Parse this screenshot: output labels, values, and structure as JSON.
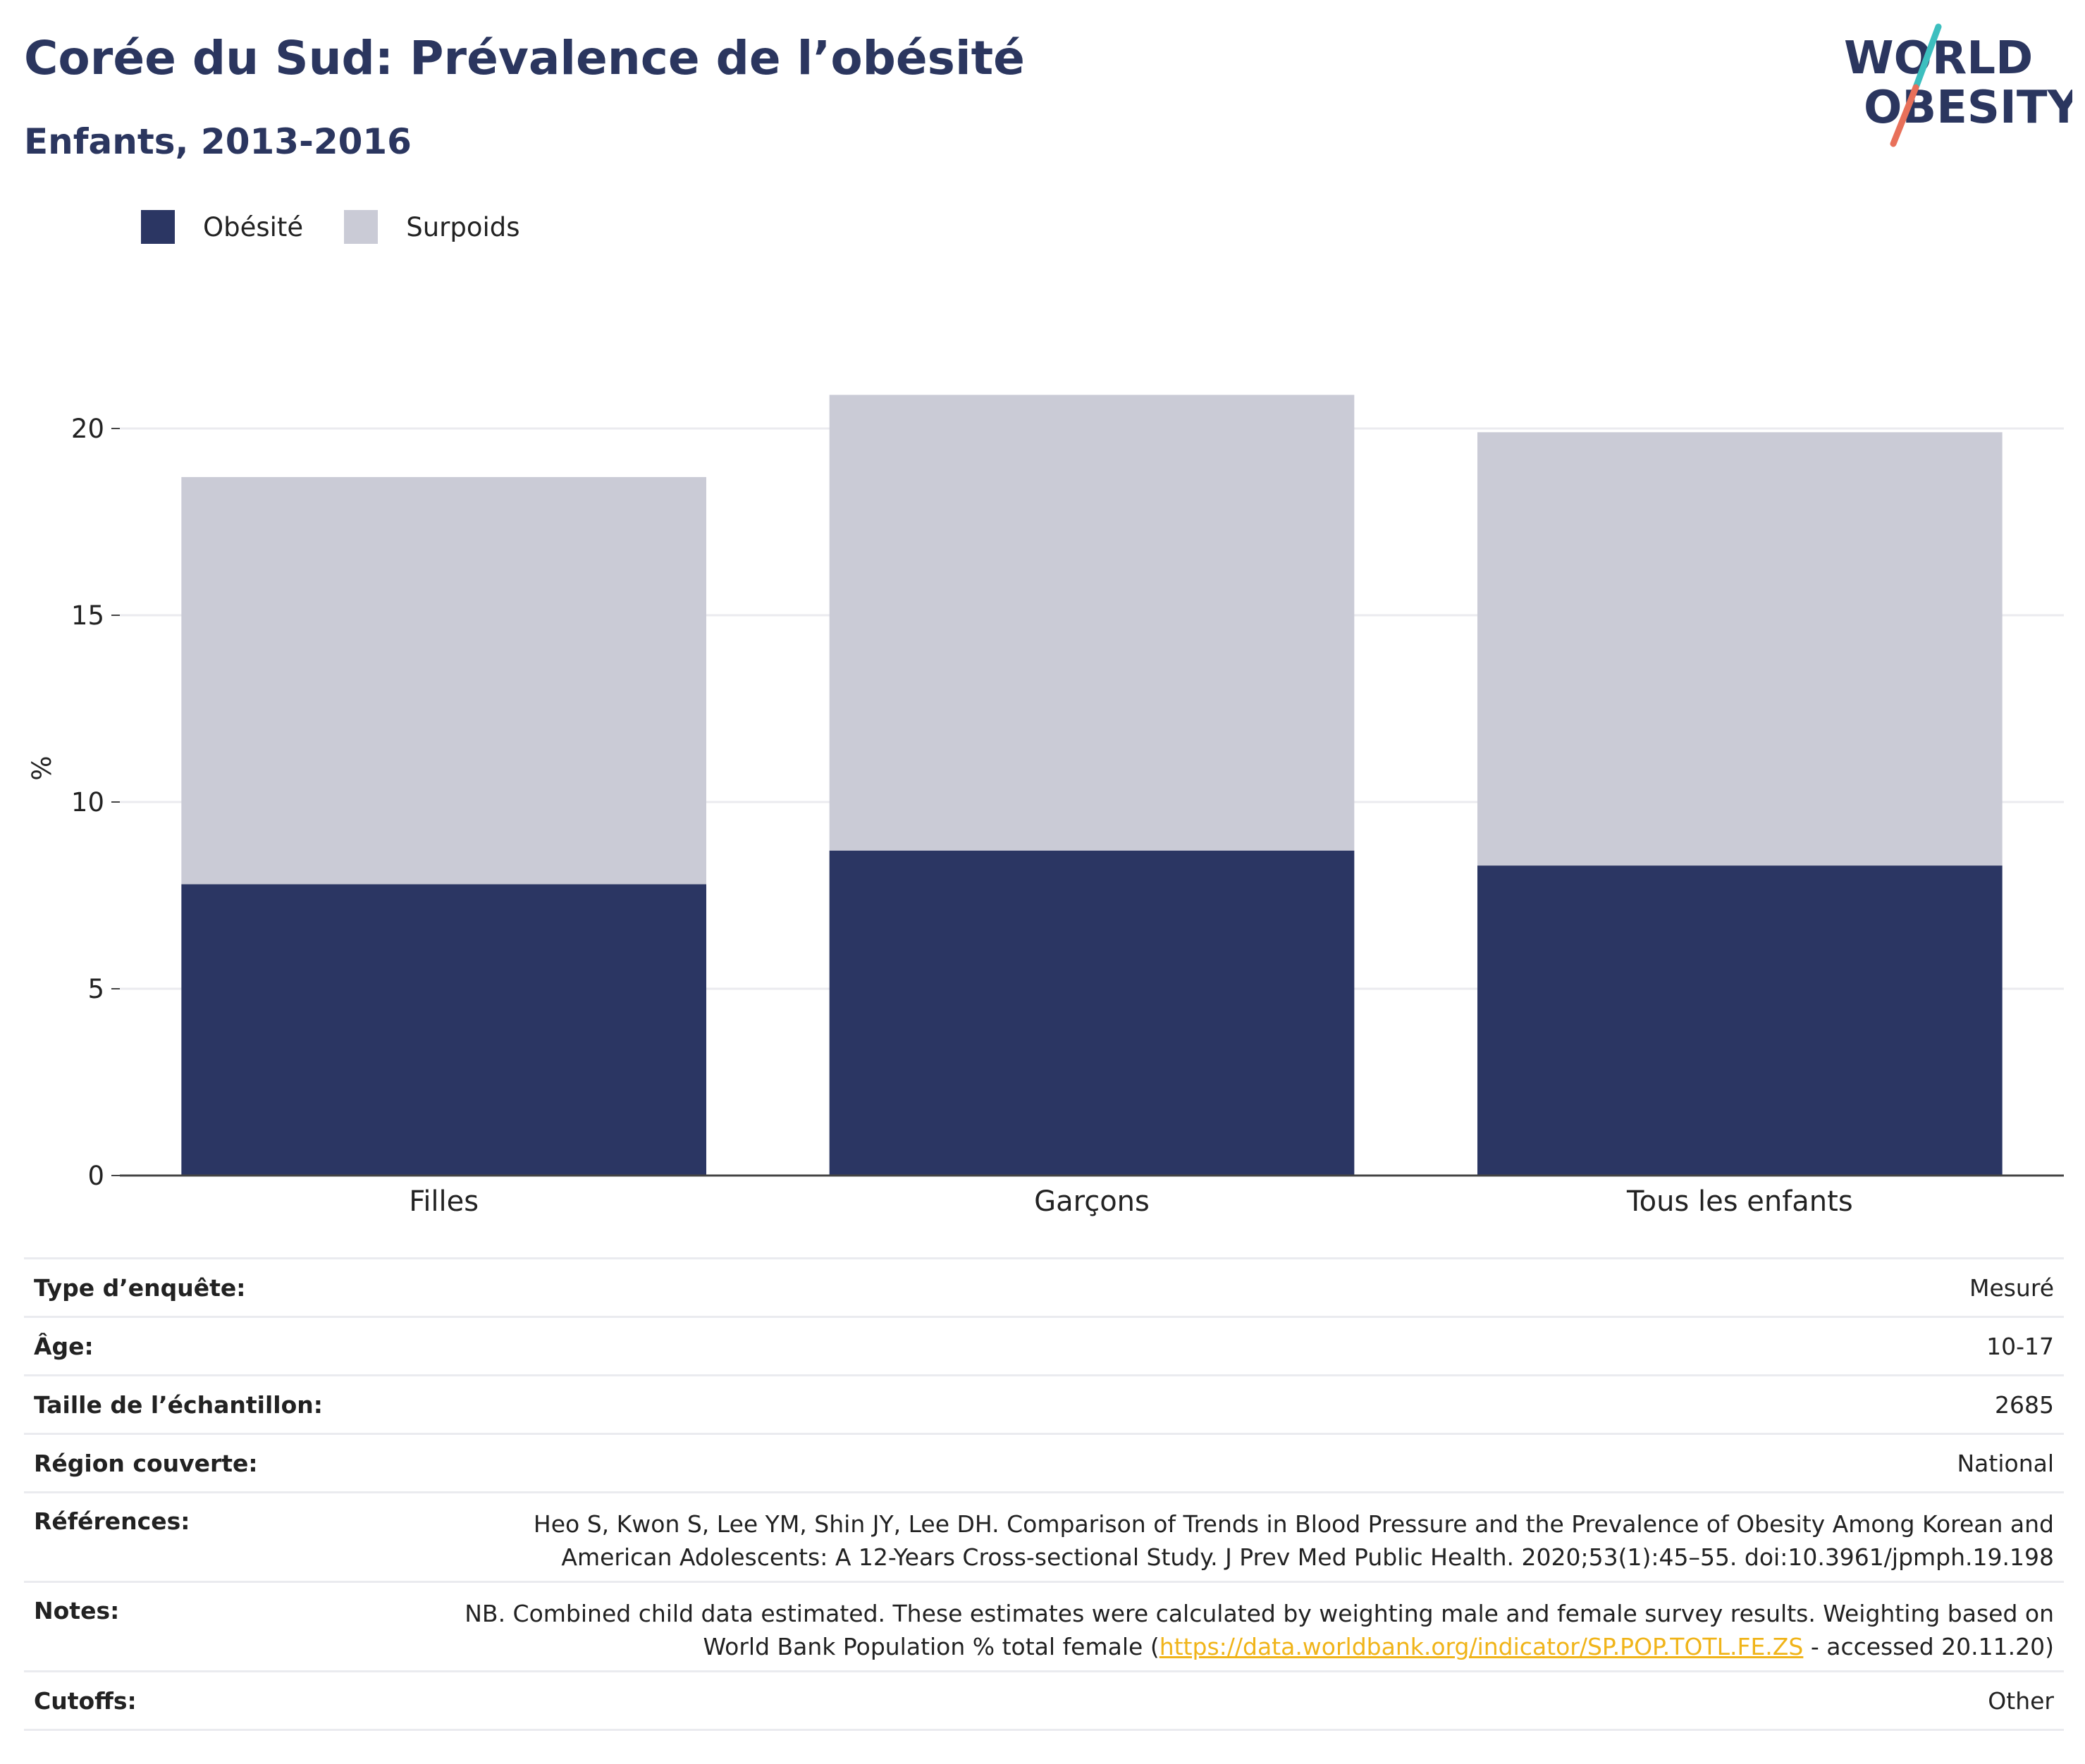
{
  "header": {
    "title": "Corée du Sud: Prévalence de l’obésité",
    "subtitle": "Enfants, 2013-2016"
  },
  "logo": {
    "line1": "WORLD",
    "line2": "OBESITY",
    "colors": {
      "text": "#2b365f",
      "slash_top": "#3dbfbf",
      "slash_bottom": "#e8705a"
    }
  },
  "colors": {
    "obesity": "#2b3663",
    "overweight": "#cacbd6",
    "title": "#2b365f",
    "grid": "#ebebef",
    "link": "#f0b419"
  },
  "legend": [
    {
      "label": "Obésité",
      "color": "#2b3663"
    },
    {
      "label": "Surpoids",
      "color": "#cacbd6"
    }
  ],
  "chart_data": {
    "type": "bar",
    "stacked": true,
    "categories": [
      "Filles",
      "Garçons",
      "Tous les enfants"
    ],
    "series": [
      {
        "name": "Obésité",
        "values": [
          7.8,
          8.7,
          8.3
        ],
        "color": "#2b3663"
      },
      {
        "name": "Surpoids",
        "values": [
          10.9,
          12.2,
          11.6
        ],
        "color": "#cacbd6"
      }
    ],
    "totals": [
      18.7,
      20.9,
      19.9
    ],
    "ylabel": "%",
    "ylim": [
      0,
      21.5
    ],
    "yticks": [
      0,
      5,
      10,
      15,
      20
    ],
    "grid": true,
    "legend_position": "top-left"
  },
  "info": [
    {
      "key": "Type d’enquête:",
      "value": "Mesuré"
    },
    {
      "key": "Âge:",
      "value": "10-17"
    },
    {
      "key": "Taille de l’échantillon:",
      "value": "2685"
    },
    {
      "key": "Région couverte:",
      "value": "National"
    },
    {
      "key": "Références:",
      "line1": "Heo S, Kwon S, Lee YM, Shin JY, Lee DH. Comparison of Trends in Blood Pressure and the Prevalence of Obesity Among Korean and",
      "line2": "American Adolescents: A 12-Years Cross-sectional Study. J Prev Med Public Health. 2020;53(1):45–55. doi:10.3961/jpmph.19.198"
    },
    {
      "key": "Notes:",
      "line1": "NB. Combined child data estimated. These estimates were calculated by weighting male and female survey results. Weighting based on",
      "line2_pre": "World Bank Population % total female (",
      "line2_link": "https://data.worldbank.org/indicator/SP.POP.TOTL.FE.ZS",
      "line2_post": " - accessed 20.11.20)"
    },
    {
      "key": "Cutoffs:",
      "value": "Other"
    }
  ]
}
